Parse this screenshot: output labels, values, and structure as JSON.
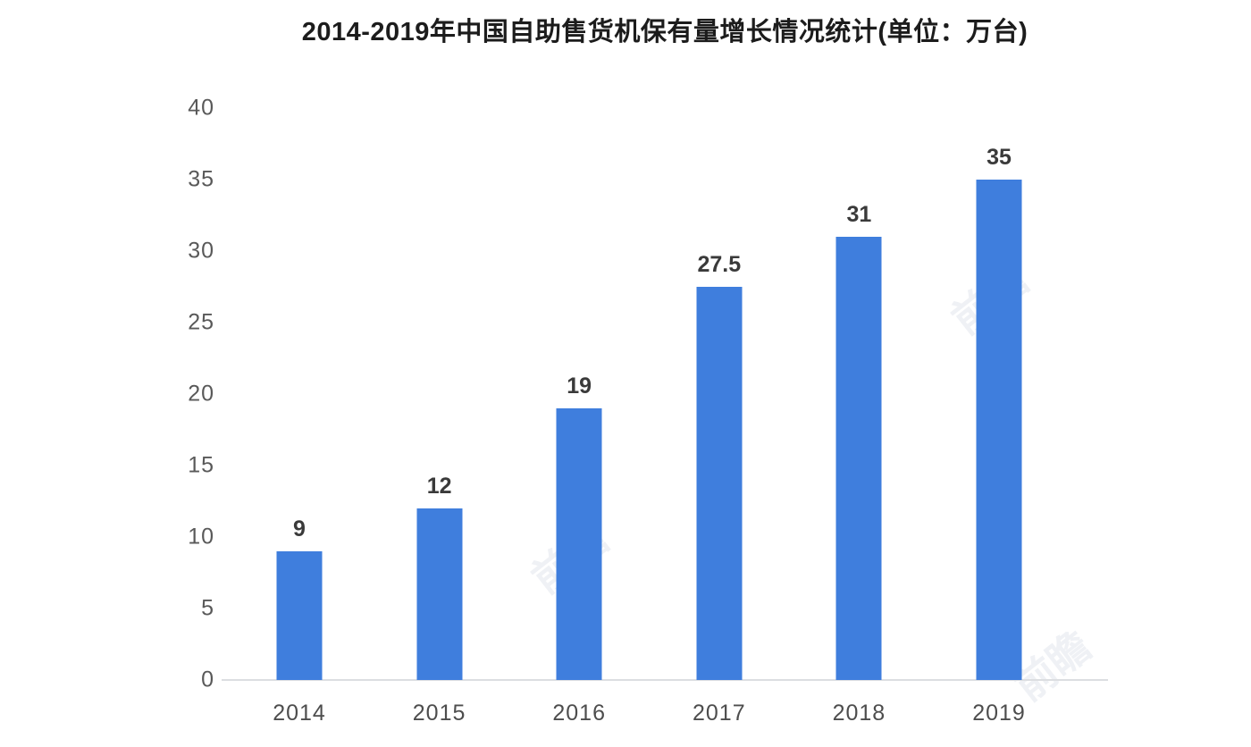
{
  "chart_data": {
    "type": "bar",
    "title": "2014-2019年中国自助售货机保有量增长情况统计(单位：万台)",
    "categories": [
      "2014",
      "2015",
      "2016",
      "2017",
      "2018",
      "2019"
    ],
    "values": [
      9,
      12,
      19,
      27.5,
      31,
      35
    ],
    "value_labels": [
      "9",
      "12",
      "19",
      "27.5",
      "31",
      "35"
    ],
    "unit": "万台",
    "xlabel": "",
    "ylabel": "",
    "ylim": [
      0,
      40
    ],
    "yticks": [
      0,
      5,
      10,
      15,
      20,
      25,
      30,
      35,
      40
    ],
    "grid": false,
    "legend": "none",
    "bar_color": "#3f7edd",
    "axis_line_color": "#dcdee1",
    "tick_label_color": "#595959",
    "data_label_color": "#3a3a3a",
    "title_color": "#1c1c1c",
    "background_color": "#ffffff"
  },
  "watermark": {
    "text": "前瞻"
  }
}
